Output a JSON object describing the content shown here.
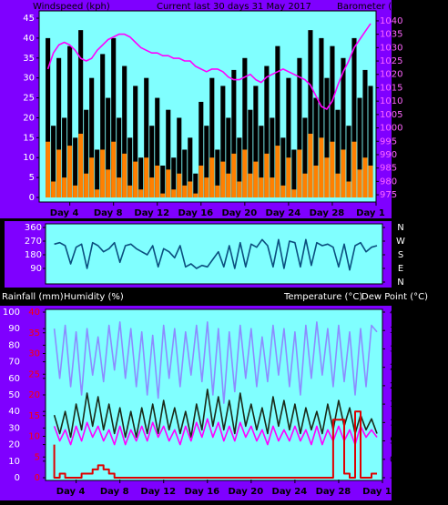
{
  "chart_data": [
    {
      "type": "combo",
      "title": "Current last 30 days 31 May 2017",
      "y_label": "Windspeed (kph)",
      "y2_label": "Barometer (hpa)",
      "x": [
        2,
        2.5,
        3,
        3.5,
        4,
        4.5,
        5,
        5.5,
        6,
        6.5,
        7,
        7.5,
        8,
        8.5,
        9,
        9.5,
        10,
        10.5,
        11,
        11.5,
        12,
        12.5,
        13,
        13.5,
        14,
        14.5,
        15,
        15.5,
        16,
        16.5,
        17,
        17.5,
        18,
        18.5,
        19,
        19.5,
        20,
        20.5,
        21,
        21.5,
        22,
        22.5,
        23,
        23.5,
        24,
        24.5,
        25,
        25.5,
        26,
        26.5,
        27,
        27.5,
        28,
        28.5,
        29,
        29.5,
        30,
        30.5,
        31,
        31.5
      ],
      "xlim": [
        1.2,
        32
      ],
      "xticks": [
        {
          "value": 4,
          "label": "Day 4"
        },
        {
          "value": 8,
          "label": "Day 8"
        },
        {
          "value": 12,
          "label": "Day 12"
        },
        {
          "value": 16,
          "label": "Day 16"
        },
        {
          "value": 20,
          "label": "Day 20"
        },
        {
          "value": 24,
          "label": "Day 24"
        },
        {
          "value": 28,
          "label": "Day 28"
        },
        {
          "value": 32,
          "label": "Day 1"
        }
      ],
      "ylim": [
        0,
        45
      ],
      "yticks": [
        0,
        5,
        10,
        15,
        20,
        25,
        30,
        35,
        40,
        45
      ],
      "y2lim": [
        974,
        1041
      ],
      "y2ticks": [
        975,
        980,
        985,
        990,
        995,
        1000,
        1005,
        1010,
        1015,
        1020,
        1025,
        1030,
        1035,
        1040
      ],
      "series": [
        {
          "kind": "bar",
          "color": "#000000",
          "values": [
            40,
            18,
            35,
            20,
            38,
            15,
            42,
            22,
            30,
            12,
            36,
            25,
            40,
            20,
            33,
            15,
            28,
            10,
            30,
            18,
            25,
            8,
            22,
            10,
            20,
            12,
            15,
            6,
            24,
            18,
            30,
            12,
            28,
            20,
            32,
            15,
            35,
            22,
            28,
            18,
            33,
            20,
            38,
            15,
            30,
            12,
            35,
            20,
            42,
            25,
            40,
            30,
            38,
            22,
            35,
            18,
            40,
            25,
            32,
            28
          ]
        },
        {
          "kind": "bar",
          "color": "#ff8000",
          "values": [
            14,
            4,
            12,
            5,
            13,
            3,
            16,
            6,
            10,
            2,
            12,
            7,
            14,
            5,
            11,
            3,
            9,
            2,
            10,
            5,
            8,
            1,
            7,
            2,
            6,
            3,
            4,
            1,
            8,
            5,
            10,
            3,
            9,
            6,
            11,
            4,
            12,
            6,
            9,
            5,
            11,
            5,
            13,
            3,
            10,
            2,
            12,
            6,
            16,
            8,
            15,
            10,
            14,
            6,
            12,
            4,
            14,
            7,
            10,
            8
          ]
        },
        {
          "kind": "line",
          "axis": "y2",
          "color": "#ff00ff",
          "values": [
            1022,
            1028,
            1031,
            1032,
            1031,
            1029,
            1026,
            1025,
            1026,
            1029,
            1031,
            1033,
            1034,
            1035,
            1035,
            1034,
            1032,
            1030,
            1029,
            1028,
            1028,
            1027,
            1027,
            1026,
            1026,
            1025,
            1025,
            1023,
            1022,
            1021,
            1022,
            1022,
            1021,
            1019,
            1018,
            1018,
            1019,
            1020,
            1018,
            1017,
            1019,
            1020,
            1021,
            1022,
            1021,
            1020,
            1019,
            1018,
            1016,
            1012,
            1008,
            1007,
            1010,
            1016,
            1021,
            1025,
            1030,
            1033,
            1036,
            1039
          ]
        }
      ]
    },
    {
      "type": "line",
      "x": [
        2,
        2.5,
        3,
        3.5,
        4,
        4.5,
        5,
        5.5,
        6,
        6.5,
        7,
        7.5,
        8,
        8.5,
        9,
        9.5,
        10,
        10.5,
        11,
        11.5,
        12,
        12.5,
        13,
        13.5,
        14,
        14.5,
        15,
        15.5,
        16,
        16.5,
        17,
        17.5,
        18,
        18.5,
        19,
        19.5,
        20,
        20.5,
        21,
        21.5,
        22,
        22.5,
        23,
        23.5,
        24,
        24.5,
        25,
        25.5,
        26,
        26.5,
        27,
        27.5,
        28,
        28.5,
        29,
        29.5,
        30,
        30.5,
        31,
        31.5
      ],
      "xlim": [
        1.2,
        32
      ],
      "ylim": [
        0,
        360
      ],
      "yticks": [
        90,
        180,
        270,
        360
      ],
      "y2lim": [
        0,
        360
      ],
      "y2ticks": [
        {
          "value": 360,
          "label": "N"
        },
        {
          "value": 270,
          "label": "W"
        },
        {
          "value": 180,
          "label": "S"
        },
        {
          "value": 90,
          "label": "E"
        },
        {
          "value": 0,
          "label": "N"
        }
      ],
      "series": [
        {
          "kind": "line",
          "color": "#0b4f7f",
          "values": [
            250,
            260,
            240,
            120,
            230,
            250,
            90,
            260,
            240,
            200,
            220,
            260,
            130,
            240,
            250,
            220,
            200,
            180,
            240,
            100,
            220,
            200,
            160,
            240,
            100,
            120,
            90,
            110,
            100,
            150,
            200,
            100,
            240,
            90,
            260,
            100,
            250,
            230,
            280,
            240,
            100,
            280,
            90,
            270,
            260,
            100,
            280,
            110,
            260,
            240,
            250,
            230,
            100,
            250,
            80,
            240,
            260,
            200,
            230,
            240
          ]
        }
      ]
    },
    {
      "type": "line",
      "y3_label": "Rainfall (mm)",
      "y_label": "Humidity (%)",
      "y2_labels": [
        "Temperature (°C)",
        "Dew Point (°C)"
      ],
      "x": [
        2,
        2.5,
        3,
        3.5,
        4,
        4.5,
        5,
        5.5,
        6,
        6.5,
        7,
        7.5,
        8,
        8.5,
        9,
        9.5,
        10,
        10.5,
        11,
        11.5,
        12,
        12.5,
        13,
        13.5,
        14,
        14.5,
        15,
        15.5,
        16,
        16.5,
        17,
        17.5,
        18,
        18.5,
        19,
        19.5,
        20,
        20.5,
        21,
        21.5,
        22,
        22.5,
        23,
        23.5,
        24,
        24.5,
        25,
        25.5,
        26,
        26.5,
        27,
        27.5,
        28,
        28.5,
        29,
        29.5,
        30,
        30.5,
        31,
        31.5
      ],
      "xlim": [
        1.2,
        32
      ],
      "xticks": [
        {
          "value": 4,
          "label": "Day 4"
        },
        {
          "value": 8,
          "label": "Day 8"
        },
        {
          "value": 12,
          "label": "Day 12"
        },
        {
          "value": 16,
          "label": "Day 16"
        },
        {
          "value": 20,
          "label": "Day 20"
        },
        {
          "value": 24,
          "label": "Day 24"
        },
        {
          "value": 28,
          "label": "Day 28"
        },
        {
          "value": 32,
          "label": "Day 1"
        }
      ],
      "ylim": [
        0,
        100
      ],
      "yticks": [
        0,
        10,
        20,
        30,
        40,
        50,
        60,
        70,
        80,
        90,
        100
      ],
      "y2lim": [
        -5,
        40
      ],
      "y2ticks": [
        -5,
        0,
        5,
        10,
        15,
        20,
        25,
        30,
        35,
        40
      ],
      "y3lim": [
        0,
        40
      ],
      "y3ticks": [
        0,
        5,
        10,
        15,
        20,
        25,
        30,
        35,
        40
      ],
      "series": [
        {
          "kind": "line",
          "color": "#8c8cff",
          "values": [
            90,
            60,
            92,
            55,
            88,
            50,
            90,
            62,
            85,
            58,
            92,
            65,
            94,
            60,
            90,
            55,
            88,
            50,
            86,
            48,
            92,
            60,
            90,
            55,
            88,
            62,
            92,
            58,
            94,
            50,
            90,
            45,
            88,
            52,
            92,
            60,
            90,
            55,
            85,
            58,
            92,
            62,
            90,
            55,
            88,
            50,
            92,
            60,
            94,
            62,
            90,
            55,
            92,
            58,
            88,
            50,
            90,
            55,
            92,
            88
          ]
        },
        {
          "kind": "line",
          "axis": "y2",
          "color": "#1a2a1a",
          "values": [
            12,
            7,
            13,
            6,
            15,
            8,
            18,
            9,
            17,
            8,
            15,
            7,
            14,
            6,
            13,
            6,
            14,
            7,
            15,
            7,
            16,
            8,
            14,
            7,
            13,
            6,
            15,
            8,
            19,
            9,
            17,
            8,
            16,
            7,
            18,
            9,
            15,
            8,
            14,
            7,
            17,
            9,
            16,
            8,
            15,
            7,
            14,
            8,
            13,
            7,
            15,
            8,
            16,
            9,
            14,
            7,
            12,
            8,
            11,
            7
          ]
        },
        {
          "kind": "line",
          "axis": "y2",
          "color": "#ff00ff",
          "values": [
            9,
            5,
            8,
            4,
            9,
            5,
            10,
            6,
            9,
            5,
            8,
            4,
            9,
            4,
            8,
            5,
            9,
            5,
            10,
            6,
            9,
            5,
            8,
            4,
            9,
            5,
            10,
            6,
            11,
            6,
            10,
            5,
            9,
            5,
            10,
            6,
            9,
            5,
            8,
            4,
            9,
            5,
            8,
            5,
            9,
            5,
            8,
            4,
            9,
            4,
            8,
            5,
            9,
            5,
            8,
            4,
            9,
            6,
            8,
            6
          ]
        },
        {
          "kind": "step",
          "axis": "y3",
          "color": "#e00000",
          "values": [
            8,
            0,
            1,
            0,
            0,
            0,
            1,
            1,
            2,
            3,
            2,
            1,
            0,
            0,
            0,
            0,
            0,
            0,
            0,
            0,
            0,
            0,
            0,
            0,
            0,
            0,
            0,
            0,
            0,
            0,
            0,
            0,
            0,
            0,
            0,
            0,
            0,
            0,
            0,
            0,
            0,
            0,
            0,
            0,
            0,
            0,
            0,
            0,
            0,
            0,
            0,
            0,
            14,
            14,
            1,
            0,
            16,
            0,
            0,
            1
          ]
        }
      ]
    }
  ]
}
